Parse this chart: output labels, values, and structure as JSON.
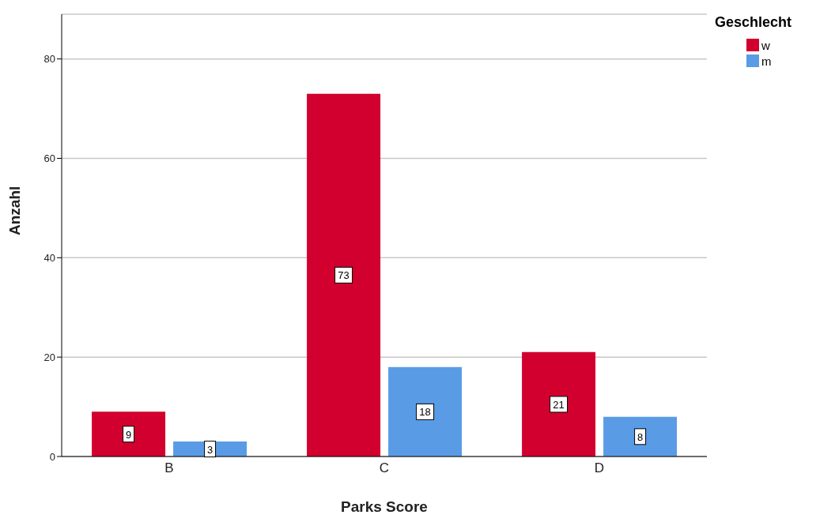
{
  "chart_data": {
    "type": "bar",
    "xlabel": "Parks Score",
    "ylabel": "Anzahl",
    "legend_title": "Geschlecht",
    "categories": [
      "B",
      "C",
      "D"
    ],
    "series": [
      {
        "name": "w",
        "color": "#d2002e",
        "values": [
          9,
          73,
          21
        ]
      },
      {
        "name": "m",
        "color": "#5a9be6",
        "values": [
          3,
          18,
          8
        ]
      }
    ],
    "ylim": [
      0,
      89
    ],
    "yticks": [
      0,
      20,
      40,
      60,
      80
    ],
    "grid": "y",
    "legend": "top right",
    "data_labels": true
  }
}
